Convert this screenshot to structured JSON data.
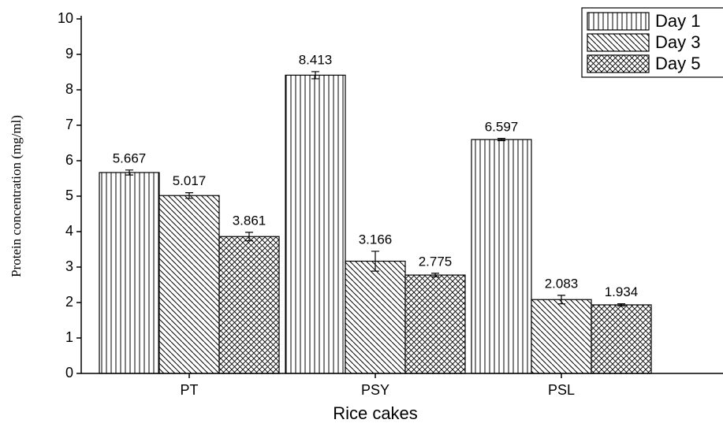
{
  "chart_data": {
    "type": "bar",
    "x_label": "Rice cakes",
    "y_label": "Protein concentration (mg/ml)",
    "categories": [
      "PT",
      "PSY",
      "PSL"
    ],
    "series": [
      {
        "name": "Day 1",
        "color": "#000000",
        "pattern": "vertical",
        "values": [
          5.667,
          8.413,
          6.597
        ],
        "errors": [
          0.07,
          0.1,
          0.03
        ]
      },
      {
        "name": "Day 3",
        "color": "#000000",
        "pattern": "diagonal",
        "values": [
          5.017,
          3.166,
          2.083
        ],
        "errors": [
          0.08,
          0.28,
          0.12
        ]
      },
      {
        "name": "Day 5",
        "color": "#000000",
        "pattern": "crosshatch",
        "values": [
          3.861,
          2.775,
          1.934
        ],
        "errors": [
          0.12,
          0.05,
          0.03
        ]
      }
    ],
    "ylim": [
      0,
      10
    ],
    "yticks": [
      0,
      1,
      2,
      3,
      4,
      5,
      6,
      7,
      8,
      9,
      10
    ],
    "legend": "top-right"
  }
}
